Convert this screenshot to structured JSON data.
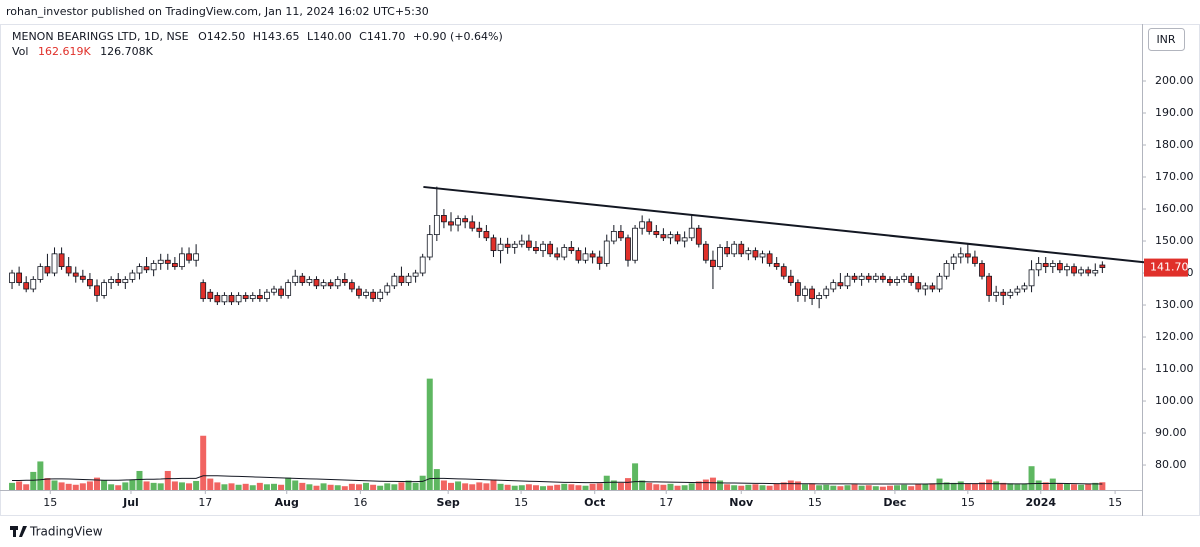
{
  "publisher": "rohan_investor published on TradingView.com, Jan 11, 2024 16:02 UTC+5:30",
  "logo": "TradingView",
  "chart_data": {
    "type": "candlestick",
    "title": "MENON BEARINGS LTD, 1D, NSE",
    "ohlc_header": [
      "O142.50",
      "H143.65",
      "L140.00",
      "C141.70",
      "+0.90 (+0.64%)"
    ],
    "volume_header": {
      "label": "Vol",
      "value": "162.619K",
      "ma": "126.708K"
    },
    "currency": "INR",
    "last_price_label": "141.70",
    "up_color": "#ffffff",
    "down_color": "#e0302a",
    "volume_up_color": "#4caf50",
    "volume_down_color": "#ef5350",
    "xlim": [
      -1.7,
      159.6
    ],
    "ylim": [
      72.2,
      217.5
    ],
    "volume_lim": [
      0,
      9770
    ],
    "xticks": [
      {
        "value": 5.4,
        "label": "15"
      },
      {
        "value": 16.8,
        "label": "Jul"
      },
      {
        "value": 27.3,
        "label": "17"
      },
      {
        "value": 38.8,
        "label": "Aug"
      },
      {
        "value": 49.2,
        "label": "16"
      },
      {
        "value": 61.6,
        "label": "Sep"
      },
      {
        "value": 71.9,
        "label": "15"
      },
      {
        "value": 82.3,
        "label": "Oct"
      },
      {
        "value": 92.4,
        "label": "17"
      },
      {
        "value": 103,
        "label": "Nov"
      },
      {
        "value": 113.4,
        "label": "15"
      },
      {
        "value": 124.7,
        "label": "Dec"
      },
      {
        "value": 135,
        "label": "15"
      },
      {
        "value": 145.3,
        "label": "2024"
      },
      {
        "value": 155.8,
        "label": "15"
      }
    ],
    "yticks": [
      {
        "value": 80,
        "label": "80.00"
      },
      {
        "value": 90,
        "label": "90.00"
      },
      {
        "value": 100,
        "label": "100.00"
      },
      {
        "value": 110,
        "label": "110.00"
      },
      {
        "value": 120,
        "label": "120.00"
      },
      {
        "value": 130,
        "label": "130.00"
      },
      {
        "value": 140,
        "label": "140.00"
      },
      {
        "value": 150,
        "label": "150.00"
      },
      {
        "value": 160,
        "label": "160.00"
      },
      {
        "value": 170,
        "label": "170.00"
      },
      {
        "value": 180,
        "label": "180.00"
      },
      {
        "value": 190,
        "label": "190.00"
      },
      {
        "value": 200,
        "label": "200.00"
      }
    ],
    "trendline": {
      "x": [
        58.1,
        161.1
      ],
      "y": [
        166.9,
        143.1
      ]
    },
    "ohlc": [
      [
        137,
        141,
        135,
        140
      ],
      [
        140,
        142,
        136,
        137
      ],
      [
        137,
        139,
        134,
        135
      ],
      [
        135,
        139,
        134,
        138
      ],
      [
        138,
        143,
        137,
        142
      ],
      [
        142,
        146,
        139,
        140
      ],
      [
        140,
        148,
        139,
        146
      ],
      [
        146,
        148,
        141,
        142
      ],
      [
        142,
        145,
        139,
        140
      ],
      [
        140,
        142,
        137,
        139
      ],
      [
        139,
        141,
        137,
        138
      ],
      [
        138,
        140,
        135,
        136
      ],
      [
        136,
        138,
        131,
        133
      ],
      [
        133,
        138,
        132,
        137
      ],
      [
        137,
        139,
        135,
        138
      ],
      [
        138,
        140,
        136,
        137
      ],
      [
        137,
        139,
        135,
        138
      ],
      [
        138,
        141,
        137,
        140
      ],
      [
        140,
        143,
        138,
        142
      ],
      [
        142,
        145,
        140,
        141
      ],
      [
        141,
        144,
        139,
        143
      ],
      [
        143,
        146,
        141,
        144
      ],
      [
        144,
        146,
        141,
        143
      ],
      [
        143,
        145,
        141,
        142
      ],
      [
        142,
        148,
        141,
        146
      ],
      [
        146,
        148,
        143,
        144
      ],
      [
        144,
        149,
        142,
        146
      ],
      [
        137,
        138,
        131,
        132
      ],
      [
        134,
        135,
        131,
        132
      ],
      [
        133,
        134,
        130,
        131
      ],
      [
        131,
        134,
        130,
        133
      ],
      [
        133,
        134,
        130,
        131
      ],
      [
        131,
        134,
        130,
        133
      ],
      [
        133,
        134,
        131,
        132
      ],
      [
        132,
        134,
        131,
        133
      ],
      [
        133,
        135,
        131,
        132
      ],
      [
        132,
        135,
        131,
        134
      ],
      [
        134,
        136,
        133,
        135
      ],
      [
        135,
        136,
        132,
        133
      ],
      [
        133,
        138,
        132,
        137
      ],
      [
        137,
        141,
        136,
        139
      ],
      [
        139,
        140,
        136,
        137
      ],
      [
        137,
        139,
        136,
        138
      ],
      [
        138,
        139,
        135,
        136
      ],
      [
        136,
        138,
        135,
        137
      ],
      [
        137,
        138,
        135,
        136
      ],
      [
        136,
        139,
        135,
        138
      ],
      [
        138,
        140,
        136,
        137
      ],
      [
        137,
        138,
        134,
        135
      ],
      [
        135,
        136,
        132,
        133
      ],
      [
        133,
        135,
        132,
        134
      ],
      [
        134,
        135,
        131,
        132
      ],
      [
        132,
        135,
        131,
        134
      ],
      [
        134,
        137,
        133,
        136
      ],
      [
        136,
        140,
        135,
        139
      ],
      [
        139,
        142,
        136,
        137
      ],
      [
        137,
        140,
        136,
        139
      ],
      [
        139,
        141,
        137,
        140
      ],
      [
        140,
        146,
        139,
        145
      ],
      [
        145,
        155,
        144,
        152
      ],
      [
        152,
        167,
        150,
        158
      ],
      [
        158,
        160,
        154,
        156
      ],
      [
        156,
        159,
        153,
        155
      ],
      [
        155,
        158,
        153,
        157
      ],
      [
        157,
        158,
        154,
        156
      ],
      [
        156,
        158,
        153,
        154
      ],
      [
        154,
        156,
        151,
        153
      ],
      [
        153,
        155,
        150,
        151
      ],
      [
        151,
        152,
        145,
        147
      ],
      [
        147,
        151,
        143,
        149
      ],
      [
        149,
        151,
        146,
        148
      ],
      [
        148,
        150,
        146,
        149
      ],
      [
        149,
        152,
        148,
        150
      ],
      [
        150,
        152,
        147,
        148
      ],
      [
        148,
        150,
        146,
        147
      ],
      [
        147,
        150,
        145,
        149
      ],
      [
        149,
        150,
        145,
        146
      ],
      [
        146,
        148,
        144,
        145
      ],
      [
        145,
        149,
        144,
        148
      ],
      [
        148,
        150,
        146,
        147
      ],
      [
        147,
        148,
        143,
        144
      ],
      [
        144,
        148,
        143,
        146
      ],
      [
        146,
        147,
        143,
        145
      ],
      [
        145,
        147,
        141,
        143
      ],
      [
        143,
        152,
        142,
        150
      ],
      [
        150,
        155,
        149,
        153
      ],
      [
        153,
        155,
        150,
        151
      ],
      [
        151,
        152,
        142,
        144
      ],
      [
        144,
        155,
        143,
        154
      ],
      [
        154,
        158,
        152,
        156
      ],
      [
        156,
        157,
        152,
        153
      ],
      [
        153,
        155,
        151,
        152
      ],
      [
        152,
        154,
        150,
        151
      ],
      [
        151,
        153,
        149,
        152
      ],
      [
        152,
        153,
        149,
        150
      ],
      [
        150,
        153,
        148,
        151
      ],
      [
        151,
        158,
        150,
        154
      ],
      [
        154,
        155,
        148,
        149
      ],
      [
        149,
        150,
        143,
        144
      ],
      [
        144,
        147,
        135,
        142
      ],
      [
        142,
        149,
        141,
        148
      ],
      [
        148,
        150,
        145,
        146
      ],
      [
        146,
        150,
        145,
        149
      ],
      [
        149,
        150,
        145,
        146
      ],
      [
        146,
        148,
        144,
        147
      ],
      [
        147,
        148,
        144,
        145
      ],
      [
        145,
        147,
        143,
        146
      ],
      [
        146,
        147,
        142,
        143
      ],
      [
        143,
        145,
        141,
        142
      ],
      [
        142,
        143,
        138,
        139
      ],
      [
        139,
        141,
        136,
        137
      ],
      [
        137,
        138,
        131,
        133
      ],
      [
        133,
        136,
        131,
        135
      ],
      [
        135,
        136,
        130,
        132
      ],
      [
        132,
        134,
        129,
        133
      ],
      [
        133,
        136,
        132,
        135
      ],
      [
        135,
        138,
        134,
        137
      ],
      [
        137,
        140,
        135,
        136
      ],
      [
        136,
        140,
        135,
        139
      ],
      [
        139,
        140,
        137,
        138
      ],
      [
        138,
        140,
        136,
        139
      ],
      [
        139,
        140,
        137,
        138
      ],
      [
        138,
        140,
        137,
        139
      ],
      [
        139,
        140,
        137,
        138
      ],
      [
        138,
        139,
        136,
        137
      ],
      [
        137,
        139,
        136,
        138
      ],
      [
        138,
        140,
        137,
        139
      ],
      [
        139,
        140,
        136,
        137
      ],
      [
        137,
        139,
        134,
        135
      ],
      [
        135,
        137,
        133,
        136
      ],
      [
        136,
        137,
        134,
        135
      ],
      [
        135,
        140,
        134,
        139
      ],
      [
        139,
        144,
        138,
        143
      ],
      [
        143,
        146,
        141,
        145
      ],
      [
        145,
        148,
        143,
        146
      ],
      [
        146,
        149,
        143,
        145
      ],
      [
        145,
        147,
        142,
        143
      ],
      [
        143,
        144,
        138,
        139
      ],
      [
        139,
        140,
        131,
        133
      ],
      [
        133,
        136,
        131,
        134
      ],
      [
        134,
        135,
        130,
        133
      ],
      [
        133,
        135,
        132,
        134
      ],
      [
        134,
        136,
        133,
        135
      ],
      [
        135,
        137,
        134,
        136
      ],
      [
        136,
        144,
        134,
        141
      ],
      [
        141,
        145,
        139,
        143
      ],
      [
        143,
        145,
        140,
        142
      ],
      [
        142,
        144,
        140,
        143
      ],
      [
        143,
        144,
        140,
        141
      ],
      [
        141,
        143,
        139,
        142
      ],
      [
        142,
        143,
        139,
        140
      ],
      [
        140,
        142,
        139,
        141
      ],
      [
        141,
        142,
        139,
        140
      ],
      [
        140,
        143,
        139,
        140.8
      ],
      [
        142.5,
        143.65,
        140,
        141.7
      ]
    ],
    "volume": [
      150,
      180,
      120,
      380,
      600,
      250,
      200,
      160,
      130,
      110,
      140,
      180,
      260,
      200,
      120,
      100,
      160,
      220,
      400,
      180,
      150,
      140,
      400,
      180,
      160,
      140,
      190,
      1140,
      240,
      160,
      120,
      140,
      110,
      130,
      100,
      150,
      120,
      130,
      110,
      260,
      200,
      150,
      120,
      90,
      140,
      110,
      100,
      80,
      130,
      120,
      150,
      110,
      90,
      140,
      120,
      160,
      200,
      150,
      300,
      2340,
      440,
      200,
      150,
      180,
      140,
      120,
      160,
      140,
      220,
      130,
      110,
      90,
      100,
      120,
      100,
      80,
      90,
      110,
      130,
      120,
      100,
      90,
      130,
      140,
      300,
      200,
      150,
      250,
      560,
      200,
      150,
      120,
      110,
      130,
      90,
      100,
      140,
      180,
      220,
      260,
      200,
      120,
      100,
      90,
      110,
      120,
      100,
      90,
      130,
      160,
      200,
      180,
      120,
      140,
      100,
      110,
      90,
      80,
      100,
      120,
      90,
      100,
      80,
      70,
      90,
      100,
      110,
      80,
      120,
      130,
      140,
      240,
      160,
      150,
      180,
      140,
      130,
      160,
      220,
      180,
      150,
      140,
      120,
      130,
      500,
      200,
      160,
      240,
      140,
      130,
      120,
      110,
      130,
      150,
      162.619
    ],
    "volume_ma": [
      200,
      200,
      205,
      205,
      215,
      230,
      235,
      235,
      230,
      225,
      220,
      215,
      210,
      205,
      205,
      205,
      210,
      215,
      220,
      225,
      225,
      230,
      240,
      240,
      245,
      245,
      245,
      300,
      300,
      300,
      295,
      290,
      285,
      280,
      275,
      270,
      265,
      260,
      255,
      250,
      245,
      240,
      235,
      230,
      225,
      220,
      215,
      210,
      205,
      200,
      195,
      190,
      185,
      180,
      180,
      178,
      176,
      175,
      180,
      240,
      245,
      245,
      240,
      235,
      230,
      225,
      220,
      215,
      210,
      205,
      200,
      195,
      190,
      185,
      180,
      175,
      170,
      165,
      160,
      160,
      158,
      156,
      155,
      155,
      160,
      162,
      162,
      160,
      175,
      175,
      172,
      170,
      168,
      165,
      162,
      160,
      158,
      156,
      154,
      152,
      150,
      148,
      146,
      144,
      142,
      140,
      138,
      136,
      135,
      134,
      133,
      132,
      132,
      131,
      130,
      130,
      129,
      129,
      128,
      128,
      127,
      127,
      126,
      126,
      125,
      125,
      125,
      125,
      126,
      127,
      128,
      132,
      133,
      134,
      135,
      135,
      135,
      134,
      133,
      132,
      131,
      130,
      130,
      129,
      135,
      136,
      136,
      138,
      138,
      137,
      135,
      132,
      130,
      128,
      126.708
    ]
  }
}
